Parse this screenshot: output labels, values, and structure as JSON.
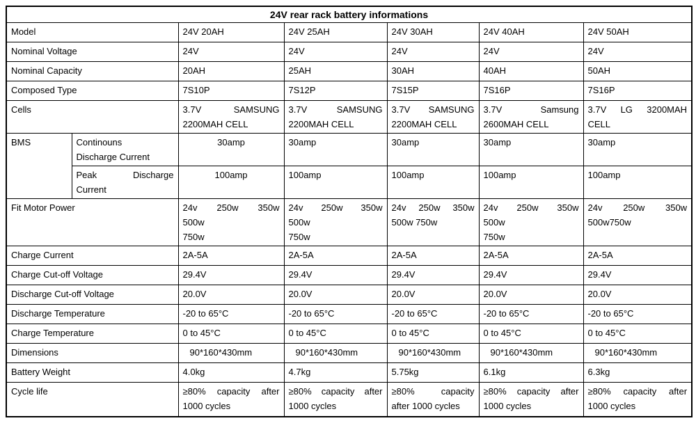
{
  "title": "24V rear rack battery informations",
  "table": {
    "columns": [
      "24V 20AH",
      "24V 25AH",
      "24V 30AH",
      "24V 40AH",
      "24V 50AH"
    ],
    "rows": [
      {
        "label": "Model",
        "values": [
          "24V 20AH",
          "24V 25AH",
          "24V 30AH",
          "24V 40AH",
          "24V 50AH"
        ]
      },
      {
        "label": "Nominal Voltage",
        "values": [
          "24V",
          "24V",
          "24V",
          "24V",
          "24V"
        ]
      },
      {
        "label": "Nominal Capacity",
        "values": [
          "20AH",
          "25AH",
          "30AH",
          "40AH",
          "50AH"
        ]
      },
      {
        "label": "Composed Type",
        "values": [
          "7S10P",
          "7S12P",
          "7S15P",
          "7S16P",
          "7S16P"
        ]
      },
      {
        "label": "Cells",
        "values": [
          "3.7V SAMSUNG\n2200MAH CELL",
          "3.7V SAMSUNG\n2200MAH CELL",
          "3.7V SAMSUNG\n2200MAH CELL",
          "3.7V Samsung\n2600MAH CELL",
          "3.7V LG 3200MAH\nCELL"
        ]
      },
      {
        "label": "BMS",
        "sublabel": "Continouns\nDischarge Current",
        "values": [
          "30amp",
          "30amp",
          "30amp",
          "30amp",
          "30amp"
        ]
      },
      {
        "sublabel": "Peak Discharge\nCurrent",
        "values": [
          "100amp",
          "100amp",
          "100amp",
          "100amp",
          "100amp"
        ]
      },
      {
        "label": "Fit Motor Power",
        "values": [
          "24v 250w 350w\n500w\n750w",
          "24v 250w 350w\n500w\n750w",
          "24v 250w 350w\n500w 750w",
          "24v 250w 350w\n500w\n750w",
          "24v 250w 350w\n500w750w"
        ]
      },
      {
        "label": "Charge Current",
        "values": [
          "2A-5A",
          "2A-5A",
          "2A-5A",
          "2A-5A",
          "2A-5A"
        ]
      },
      {
        "label": "Charge Cut-off Voltage",
        "values": [
          "29.4V",
          "29.4V",
          "29.4V",
          "29.4V",
          "29.4V"
        ]
      },
      {
        "label": "Discharge Cut-off Voltage",
        "values": [
          "20.0V",
          "20.0V",
          "20.0V",
          "20.0V",
          "20.0V"
        ]
      },
      {
        "label": "Discharge Temperature",
        "values": [
          "-20 to 65°C",
          "-20 to 65°C",
          "-20 to 65°C",
          "-20 to 65°C",
          "-20 to 65°C"
        ]
      },
      {
        "label": "Charge Temperature",
        "values": [
          "0 to 45°C",
          "0 to 45°C",
          "0 to 45°C",
          "0 to 45°C",
          "0 to 45°C"
        ]
      },
      {
        "label": "Dimensions",
        "values": [
          "90*160*430mm",
          "90*160*430mm",
          "90*160*430mm",
          "90*160*430mm",
          "90*160*430mm"
        ]
      },
      {
        "label": "Battery Weight",
        "values": [
          "4.0kg",
          "4.7kg",
          "5.75kg",
          "6.1kg",
          "6.3kg"
        ]
      },
      {
        "label": "Cycle life",
        "values": [
          "≥80% capacity after\n1000 cycles",
          "≥80% capacity after\n1000 cycles",
          "≥80% capacity\nafter 1000 cycles",
          "≥80% capacity after\n1000 cycles",
          "≥80% capacity after\n1000 cycles"
        ]
      }
    ]
  }
}
